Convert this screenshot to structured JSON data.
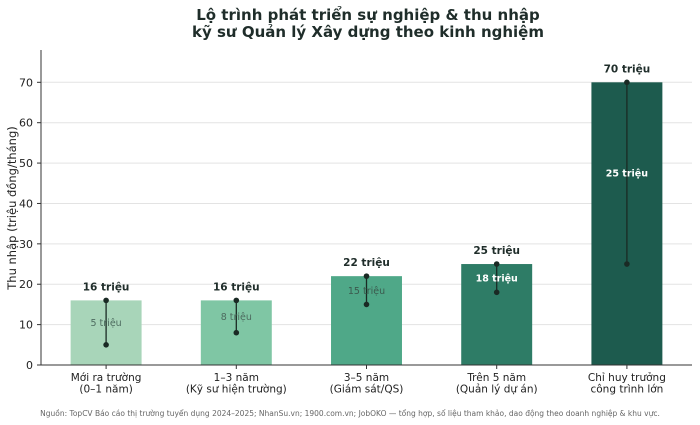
{
  "chart_data": {
    "type": "bar",
    "title_lines": [
      "Lộ trình phát triển sự nghiệp & thu nhập",
      "kỹ sư Quản lý Xây dựng theo kinh nghiệm"
    ],
    "ylabel": "Thu nhập (triệu đồng/tháng)",
    "ylim": [
      0,
      78
    ],
    "yticks": [
      0,
      10,
      20,
      30,
      40,
      50,
      60,
      70
    ],
    "grid": true,
    "categories": [
      [
        "Mới ra trường",
        "(0–1 năm)"
      ],
      [
        "1–3 năm",
        "(Kỹ sư hiện trường)"
      ],
      [
        "3–5 năm",
        "(Giám sát/QS)"
      ],
      [
        "Trên 5 năm",
        "(Quản lý dự án)"
      ],
      [
        "Chỉ huy trưởng",
        "công trình lớn"
      ]
    ],
    "max_values": [
      16,
      16,
      22,
      25,
      70
    ],
    "min_values": [
      5,
      8,
      15,
      18,
      25
    ],
    "max_labels": [
      "16 triệu",
      "16 triệu",
      "22 triệu",
      "25 triệu",
      "70 triệu"
    ],
    "min_labels": [
      "5 triệu",
      "8 triệu",
      "15 triệu",
      "18 triệu",
      "25 triệu"
    ],
    "bar_colors": [
      "#a8d5b9",
      "#7fc6a4",
      "#4fa888",
      "#2e7c66",
      "#1d5b4e"
    ],
    "min_label_colors": [
      "#4d6b5f",
      "#4d6b5f",
      "#3b5a4e",
      "#ffffff",
      "#ffffff"
    ],
    "range_color": "#1a2a24",
    "source": "Nguồn: TopCV Báo cáo thị trường tuyển dụng 2024–2025; NhanSu.vn; 1900.com.vn; JobOKO — tổng hợp, số liệu tham khảo, dao động theo doanh nghiệp & khu vực."
  }
}
